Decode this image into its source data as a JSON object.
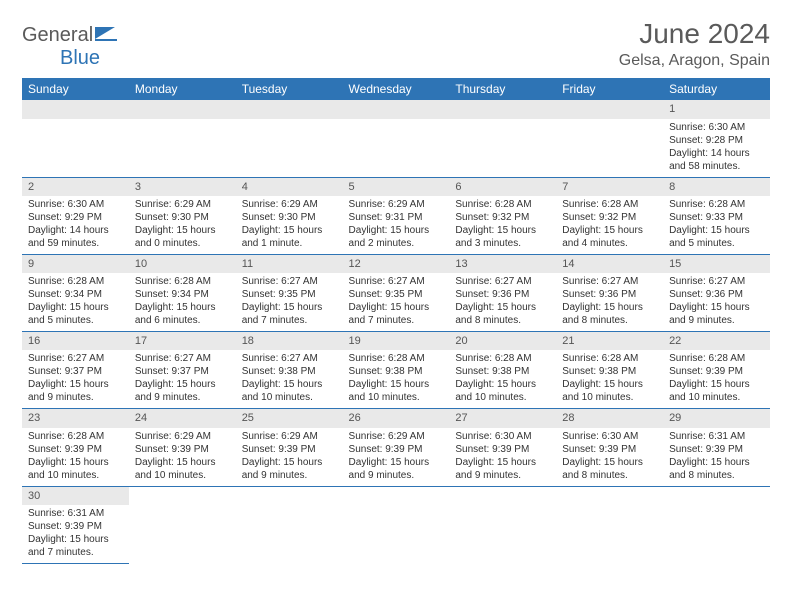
{
  "logo": {
    "text1": "General",
    "text2": "Blue"
  },
  "title": "June 2024",
  "location": "Gelsa, Aragon, Spain",
  "colors": {
    "header_bg": "#2e74b5",
    "header_text": "#ffffff",
    "daynum_bg": "#e9e9e9",
    "border": "#2e74b5",
    "text": "#333333",
    "title_text": "#5a5a5a"
  },
  "dayHeaders": [
    "Sunday",
    "Monday",
    "Tuesday",
    "Wednesday",
    "Thursday",
    "Friday",
    "Saturday"
  ],
  "weeks": [
    [
      null,
      null,
      null,
      null,
      null,
      null,
      {
        "n": "1",
        "sunrise": "Sunrise: 6:30 AM",
        "sunset": "Sunset: 9:28 PM",
        "daylight": "Daylight: 14 hours and 58 minutes."
      }
    ],
    [
      {
        "n": "2",
        "sunrise": "Sunrise: 6:30 AM",
        "sunset": "Sunset: 9:29 PM",
        "daylight": "Daylight: 14 hours and 59 minutes."
      },
      {
        "n": "3",
        "sunrise": "Sunrise: 6:29 AM",
        "sunset": "Sunset: 9:30 PM",
        "daylight": "Daylight: 15 hours and 0 minutes."
      },
      {
        "n": "4",
        "sunrise": "Sunrise: 6:29 AM",
        "sunset": "Sunset: 9:30 PM",
        "daylight": "Daylight: 15 hours and 1 minute."
      },
      {
        "n": "5",
        "sunrise": "Sunrise: 6:29 AM",
        "sunset": "Sunset: 9:31 PM",
        "daylight": "Daylight: 15 hours and 2 minutes."
      },
      {
        "n": "6",
        "sunrise": "Sunrise: 6:28 AM",
        "sunset": "Sunset: 9:32 PM",
        "daylight": "Daylight: 15 hours and 3 minutes."
      },
      {
        "n": "7",
        "sunrise": "Sunrise: 6:28 AM",
        "sunset": "Sunset: 9:32 PM",
        "daylight": "Daylight: 15 hours and 4 minutes."
      },
      {
        "n": "8",
        "sunrise": "Sunrise: 6:28 AM",
        "sunset": "Sunset: 9:33 PM",
        "daylight": "Daylight: 15 hours and 5 minutes."
      }
    ],
    [
      {
        "n": "9",
        "sunrise": "Sunrise: 6:28 AM",
        "sunset": "Sunset: 9:34 PM",
        "daylight": "Daylight: 15 hours and 5 minutes."
      },
      {
        "n": "10",
        "sunrise": "Sunrise: 6:28 AM",
        "sunset": "Sunset: 9:34 PM",
        "daylight": "Daylight: 15 hours and 6 minutes."
      },
      {
        "n": "11",
        "sunrise": "Sunrise: 6:27 AM",
        "sunset": "Sunset: 9:35 PM",
        "daylight": "Daylight: 15 hours and 7 minutes."
      },
      {
        "n": "12",
        "sunrise": "Sunrise: 6:27 AM",
        "sunset": "Sunset: 9:35 PM",
        "daylight": "Daylight: 15 hours and 7 minutes."
      },
      {
        "n": "13",
        "sunrise": "Sunrise: 6:27 AM",
        "sunset": "Sunset: 9:36 PM",
        "daylight": "Daylight: 15 hours and 8 minutes."
      },
      {
        "n": "14",
        "sunrise": "Sunrise: 6:27 AM",
        "sunset": "Sunset: 9:36 PM",
        "daylight": "Daylight: 15 hours and 8 minutes."
      },
      {
        "n": "15",
        "sunrise": "Sunrise: 6:27 AM",
        "sunset": "Sunset: 9:36 PM",
        "daylight": "Daylight: 15 hours and 9 minutes."
      }
    ],
    [
      {
        "n": "16",
        "sunrise": "Sunrise: 6:27 AM",
        "sunset": "Sunset: 9:37 PM",
        "daylight": "Daylight: 15 hours and 9 minutes."
      },
      {
        "n": "17",
        "sunrise": "Sunrise: 6:27 AM",
        "sunset": "Sunset: 9:37 PM",
        "daylight": "Daylight: 15 hours and 9 minutes."
      },
      {
        "n": "18",
        "sunrise": "Sunrise: 6:27 AM",
        "sunset": "Sunset: 9:38 PM",
        "daylight": "Daylight: 15 hours and 10 minutes."
      },
      {
        "n": "19",
        "sunrise": "Sunrise: 6:28 AM",
        "sunset": "Sunset: 9:38 PM",
        "daylight": "Daylight: 15 hours and 10 minutes."
      },
      {
        "n": "20",
        "sunrise": "Sunrise: 6:28 AM",
        "sunset": "Sunset: 9:38 PM",
        "daylight": "Daylight: 15 hours and 10 minutes."
      },
      {
        "n": "21",
        "sunrise": "Sunrise: 6:28 AM",
        "sunset": "Sunset: 9:38 PM",
        "daylight": "Daylight: 15 hours and 10 minutes."
      },
      {
        "n": "22",
        "sunrise": "Sunrise: 6:28 AM",
        "sunset": "Sunset: 9:39 PM",
        "daylight": "Daylight: 15 hours and 10 minutes."
      }
    ],
    [
      {
        "n": "23",
        "sunrise": "Sunrise: 6:28 AM",
        "sunset": "Sunset: 9:39 PM",
        "daylight": "Daylight: 15 hours and 10 minutes."
      },
      {
        "n": "24",
        "sunrise": "Sunrise: 6:29 AM",
        "sunset": "Sunset: 9:39 PM",
        "daylight": "Daylight: 15 hours and 10 minutes."
      },
      {
        "n": "25",
        "sunrise": "Sunrise: 6:29 AM",
        "sunset": "Sunset: 9:39 PM",
        "daylight": "Daylight: 15 hours and 9 minutes."
      },
      {
        "n": "26",
        "sunrise": "Sunrise: 6:29 AM",
        "sunset": "Sunset: 9:39 PM",
        "daylight": "Daylight: 15 hours and 9 minutes."
      },
      {
        "n": "27",
        "sunrise": "Sunrise: 6:30 AM",
        "sunset": "Sunset: 9:39 PM",
        "daylight": "Daylight: 15 hours and 9 minutes."
      },
      {
        "n": "28",
        "sunrise": "Sunrise: 6:30 AM",
        "sunset": "Sunset: 9:39 PM",
        "daylight": "Daylight: 15 hours and 8 minutes."
      },
      {
        "n": "29",
        "sunrise": "Sunrise: 6:31 AM",
        "sunset": "Sunset: 9:39 PM",
        "daylight": "Daylight: 15 hours and 8 minutes."
      }
    ],
    [
      {
        "n": "30",
        "sunrise": "Sunrise: 6:31 AM",
        "sunset": "Sunset: 9:39 PM",
        "daylight": "Daylight: 15 hours and 7 minutes."
      },
      null,
      null,
      null,
      null,
      null,
      null
    ]
  ]
}
